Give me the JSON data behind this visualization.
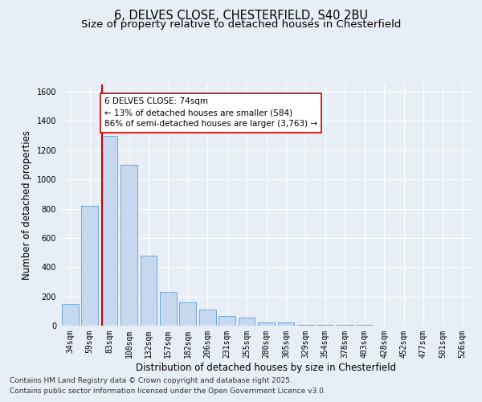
{
  "title_line1": "6, DELVES CLOSE, CHESTERFIELD, S40 2BU",
  "title_line2": "Size of property relative to detached houses in Chesterfield",
  "xlabel": "Distribution of detached houses by size in Chesterfield",
  "ylabel": "Number of detached properties",
  "categories": [
    "34sqm",
    "59sqm",
    "83sqm",
    "108sqm",
    "132sqm",
    "157sqm",
    "182sqm",
    "206sqm",
    "231sqm",
    "255sqm",
    "280sqm",
    "305sqm",
    "329sqm",
    "354sqm",
    "378sqm",
    "403sqm",
    "428sqm",
    "452sqm",
    "477sqm",
    "501sqm",
    "526sqm"
  ],
  "values": [
    150,
    820,
    1300,
    1100,
    480,
    230,
    160,
    110,
    65,
    55,
    20,
    20,
    5,
    5,
    3,
    3,
    2,
    2,
    1,
    1,
    1
  ],
  "bar_color": "#c5d8f0",
  "bar_edge_color": "#6fa8d6",
  "vline_color": "#cc0000",
  "vline_x": 1.625,
  "annotation_text": "6 DELVES CLOSE: 74sqm\n← 13% of detached houses are smaller (584)\n86% of semi-detached houses are larger (3,763) →",
  "annotation_box_color": "#ffffff",
  "annotation_box_edge": "#cc0000",
  "footer_line1": "Contains HM Land Registry data © Crown copyright and database right 2025.",
  "footer_line2": "Contains public sector information licensed under the Open Government Licence v3.0.",
  "ylim": [
    0,
    1650
  ],
  "yticks": [
    0,
    200,
    400,
    600,
    800,
    1000,
    1200,
    1400,
    1600
  ],
  "background_color": "#e8eef5",
  "plot_background": "#e8eef5",
  "grid_color": "#ffffff",
  "title_fontsize": 10.5,
  "subtitle_fontsize": 9.5,
  "axis_label_fontsize": 8.5,
  "tick_fontsize": 7,
  "annot_fontsize": 7.5,
  "footer_fontsize": 6.5
}
